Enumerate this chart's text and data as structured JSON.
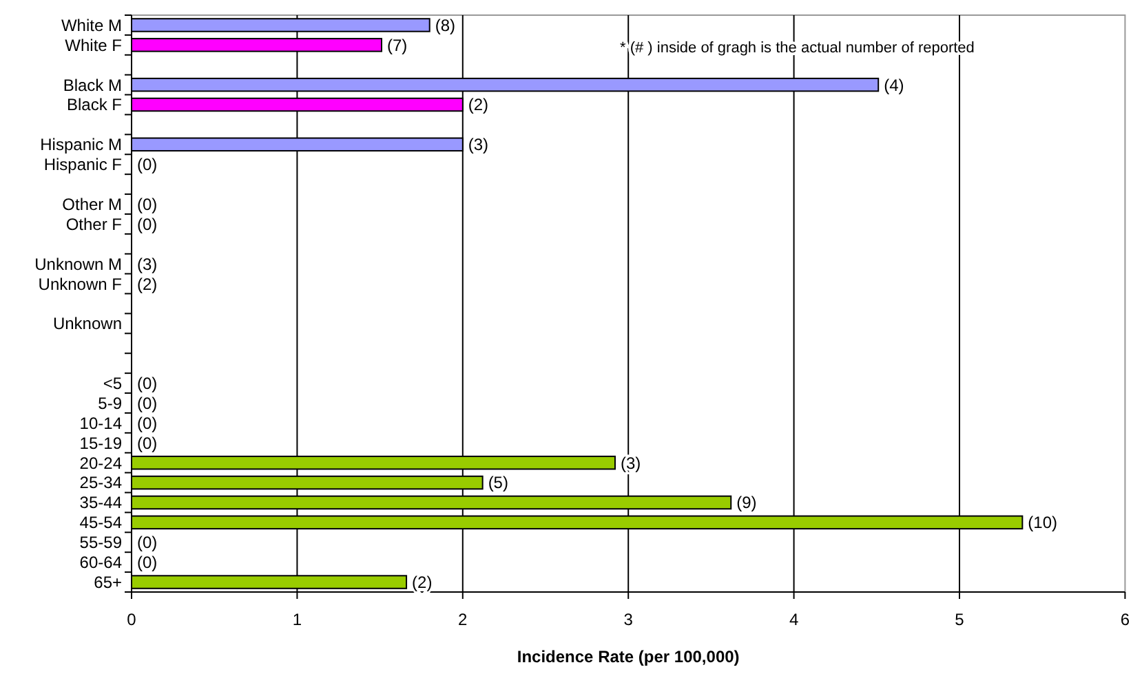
{
  "chart_data": {
    "type": "bar",
    "orientation": "horizontal",
    "xlabel": "Incidence Rate (per 100,000)",
    "annotations": [
      "* (# ) inside of gragh is the actual number of reported",
      {
        "text": "(8)",
        "x": 1.8,
        "y": "White M"
      },
      {
        "text": "(7)",
        "x": 1.51,
        "y": "White F"
      },
      {
        "text": "(4)",
        "x": 4.51,
        "y": "Black M"
      },
      {
        "text": "(2)",
        "x": 2.0,
        "y": "Black F"
      },
      {
        "text": "(3)",
        "x": 2.0,
        "y": "Hispanic M"
      },
      {
        "text": "(0)",
        "x": 0,
        "y": "Hispanic F"
      },
      {
        "text": "(0)",
        "x": 0,
        "y": "Other M"
      },
      {
        "text": "(0)",
        "x": 0,
        "y": "Other F"
      },
      {
        "text": "(3)",
        "x": 0,
        "y": "Unknown M"
      },
      {
        "text": "(2)",
        "x": 0,
        "y": "Unknown F"
      },
      {
        "text": "(0)",
        "x": 0,
        "y": "<5"
      },
      {
        "text": "(0)",
        "x": 0,
        "y": "5-9"
      },
      {
        "text": "(0)",
        "x": 0,
        "y": "10-14"
      },
      {
        "text": "(0)",
        "x": 0,
        "y": "15-19"
      },
      {
        "text": "(3)",
        "x": 2.92,
        "y": "20-24"
      },
      {
        "text": "(5)",
        "x": 2.12,
        "y": "25-34"
      },
      {
        "text": "(9)",
        "x": 3.62,
        "y": "35-44"
      },
      {
        "text": "(10)",
        "x": 5.38,
        "y": "45-54"
      },
      {
        "text": "(0)",
        "x": 0,
        "y": "55-59"
      },
      {
        "text": "(0)",
        "x": 0,
        "y": "60-64"
      },
      {
        "text": "(2)",
        "x": 1.66,
        "y": "65+"
      }
    ],
    "categories": [
      "White M",
      "White F",
      null,
      "Black M",
      "Black F",
      null,
      "Hispanic M",
      "Hispanic F",
      null,
      "Other M",
      "Other F",
      null,
      "Unknown M",
      "Unknown F",
      null,
      "Unknown",
      null,
      null,
      "<5",
      "5-9",
      "10-14",
      "15-19",
      "20-24",
      "25-34",
      "35-44",
      "45-54",
      "55-59",
      "60-64",
      "65+"
    ],
    "values": [
      1.8,
      1.51,
      null,
      4.51,
      2.0,
      null,
      2.0,
      0,
      null,
      0,
      0,
      null,
      0,
      0,
      null,
      null,
      null,
      null,
      0,
      0,
      0,
      0,
      2.92,
      2.12,
      3.62,
      5.38,
      0,
      0,
      1.66
    ],
    "colors": [
      "#9999ff",
      "#ff00ff",
      null,
      "#9999ff",
      "#ff00ff",
      null,
      "#9999ff",
      "#ff00ff",
      null,
      "#9999ff",
      "#ff00ff",
      null,
      "#9999ff",
      "#ff00ff",
      null,
      null,
      null,
      null,
      "#99cc00",
      "#99cc00",
      "#99cc00",
      "#99cc00",
      "#99cc00",
      "#99cc00",
      "#99cc00",
      "#99cc00",
      "#99cc00",
      "#99cc00",
      "#99cc00"
    ],
    "xlim": [
      0,
      6
    ],
    "xticks": [
      0,
      1,
      2,
      3,
      4,
      5,
      6
    ],
    "grid": "x"
  }
}
